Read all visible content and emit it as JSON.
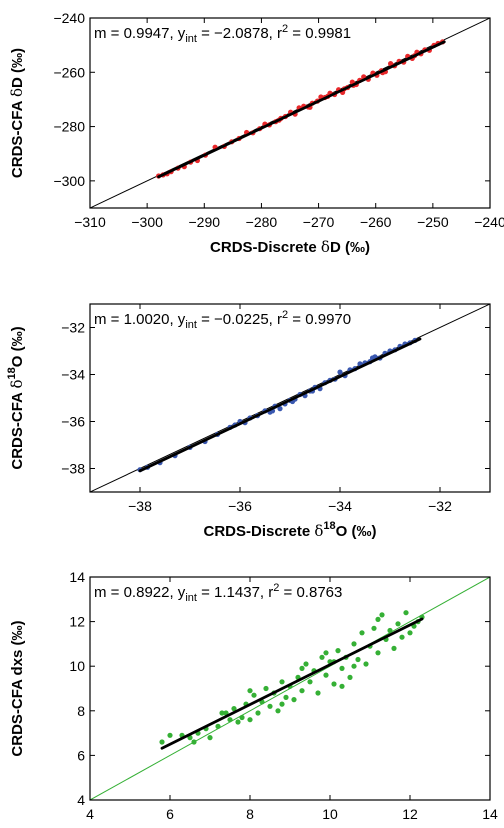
{
  "chart_data": [
    {
      "type": "scatter",
      "color": "#e8282b",
      "fit_line_color": "#000000",
      "xlim": [
        -310,
        -240
      ],
      "ylim": [
        -310,
        -240
      ],
      "xticks": [
        "−310",
        "−300",
        "−290",
        "−280",
        "−270",
        "−260",
        "−250",
        "−240"
      ],
      "yticks": [
        "−300",
        "−280",
        "−260",
        "−240"
      ],
      "xlabel": {
        "main": "CRDS-Discrete ",
        "greek": "δ",
        "sup": "",
        "rest": "D (‰)"
      },
      "ylabel": {
        "main": "CRDS-CFA ",
        "greek": "δ",
        "sup": "",
        "rest": "D (‰)"
      },
      "annotation": {
        "m": "m = 0.9947, y",
        "sub": "int",
        "mid": " = −2.0878, r",
        "sup": "2",
        "end": " = 0.9981"
      },
      "fit": {
        "slope": 0.9947,
        "intercept": -2.0878,
        "x_range": [
          -298,
          -248
        ]
      },
      "one_to_one": true,
      "points": [
        [
          -298,
          -298.2
        ],
        [
          -297.2,
          -297.8
        ],
        [
          -296.5,
          -297.4
        ],
        [
          -295.8,
          -296.6
        ],
        [
          -294.6,
          -295.3
        ],
        [
          -293.5,
          -294.8
        ],
        [
          -292.4,
          -293.1
        ],
        [
          -291.2,
          -292.5
        ],
        [
          -289.8,
          -290.5
        ],
        [
          -288.1,
          -287.6
        ],
        [
          -286.5,
          -287.3
        ],
        [
          -285.2,
          -285.6
        ],
        [
          -283.9,
          -284.4
        ],
        [
          -282.6,
          -282.2
        ],
        [
          -281.5,
          -282.3
        ],
        [
          -280.3,
          -280.8
        ],
        [
          -279.4,
          -279.1
        ],
        [
          -278.6,
          -279.4
        ],
        [
          -277.5,
          -278.2
        ],
        [
          -276.6,
          -277.0
        ],
        [
          -275.8,
          -276.3
        ],
        [
          -274.9,
          -274.7
        ],
        [
          -274.1,
          -275.4
        ],
        [
          -273.4,
          -273.1
        ],
        [
          -272.6,
          -272.5
        ],
        [
          -271.8,
          -272.8
        ],
        [
          -271.1,
          -271.4
        ],
        [
          -270.2,
          -270.6
        ],
        [
          -269.6,
          -269.1
        ],
        [
          -268.9,
          -269.3
        ],
        [
          -268.0,
          -267.7
        ],
        [
          -267.2,
          -268.2
        ],
        [
          -266.5,
          -266.4
        ],
        [
          -265.8,
          -267.4
        ],
        [
          -264.9,
          -265.6
        ],
        [
          -264.1,
          -263.6
        ],
        [
          -263.4,
          -264.5
        ],
        [
          -262.8,
          -263.0
        ],
        [
          -262.1,
          -261.7
        ],
        [
          -261.3,
          -262.6
        ],
        [
          -260.5,
          -260.3
        ],
        [
          -259.8,
          -261.1
        ],
        [
          -259.0,
          -259.4
        ],
        [
          -258.3,
          -259.8
        ],
        [
          -257.4,
          -256.8
        ],
        [
          -256.7,
          -257.6
        ],
        [
          -255.9,
          -256.0
        ],
        [
          -255.1,
          -256.3
        ],
        [
          -254.4,
          -254.1
        ],
        [
          -253.6,
          -254.9
        ],
        [
          -252.8,
          -252.6
        ],
        [
          -252.1,
          -253.2
        ],
        [
          -251.4,
          -251.7
        ],
        [
          -250.6,
          -251.9
        ],
        [
          -249.8,
          -250.1
        ],
        [
          -249.1,
          -249.4
        ],
        [
          -248.3,
          -248.8
        ],
        [
          -271.5,
          -272.9
        ],
        [
          -276.9,
          -277.6
        ],
        [
          -268.4,
          -268.9
        ],
        [
          -263.9,
          -264.8
        ],
        [
          -258.8,
          -260.1
        ],
        [
          -253.2,
          -253.9
        ],
        [
          -265.5,
          -266.1
        ]
      ]
    },
    {
      "type": "scatter",
      "color": "#3a58b0",
      "fit_line_color": "#000000",
      "xlim": [
        -39,
        -31
      ],
      "ylim": [
        -39,
        -31
      ],
      "xticks": [
        "−38",
        "−36",
        "−34",
        "−32"
      ],
      "yticks": [
        "−38",
        "−36",
        "−34",
        "−32"
      ],
      "xlabel": {
        "main": "CRDS-Discrete ",
        "greek": "δ",
        "sup": "18",
        "rest": "O (‰)"
      },
      "ylabel": {
        "main": "CRDS-CFA ",
        "greek": "δ",
        "sup": "18",
        "rest": "O (‰)"
      },
      "annotation": {
        "m": "m = 1.0020, y",
        "sub": "int",
        "mid": " = −0.0225, r",
        "sup": "2",
        "end": " = 0.9970"
      },
      "fit": {
        "slope": 1.002,
        "intercept": -0.0225,
        "x_range": [
          -38.0,
          -32.4
        ]
      },
      "one_to_one": true,
      "points": [
        [
          -38.0,
          -38.05
        ],
        [
          -37.85,
          -37.95
        ],
        [
          -37.6,
          -37.75
        ],
        [
          -37.3,
          -37.45
        ],
        [
          -37.0,
          -37.1
        ],
        [
          -36.7,
          -36.85
        ],
        [
          -36.45,
          -36.55
        ],
        [
          -36.2,
          -36.25
        ],
        [
          -36.0,
          -36.0
        ],
        [
          -35.9,
          -36.05
        ],
        [
          -35.8,
          -35.85
        ],
        [
          -35.65,
          -35.75
        ],
        [
          -35.5,
          -35.55
        ],
        [
          -35.4,
          -35.6
        ],
        [
          -35.3,
          -35.35
        ],
        [
          -35.2,
          -35.45
        ],
        [
          -35.1,
          -35.25
        ],
        [
          -35.0,
          -35.1
        ],
        [
          -34.9,
          -35.05
        ],
        [
          -34.8,
          -34.85
        ],
        [
          -34.7,
          -34.9
        ],
        [
          -34.6,
          -34.7
        ],
        [
          -34.5,
          -34.55
        ],
        [
          -34.4,
          -34.6
        ],
        [
          -34.3,
          -34.35
        ],
        [
          -34.2,
          -34.25
        ],
        [
          -34.1,
          -34.2
        ],
        [
          -34.0,
          -33.9
        ],
        [
          -33.9,
          -34.05
        ],
        [
          -33.8,
          -33.8
        ],
        [
          -33.7,
          -33.75
        ],
        [
          -33.6,
          -33.55
        ],
        [
          -33.5,
          -33.5
        ],
        [
          -33.4,
          -33.45
        ],
        [
          -33.3,
          -33.25
        ],
        [
          -33.2,
          -33.3
        ],
        [
          -33.1,
          -33.1
        ],
        [
          -33.0,
          -33.0
        ],
        [
          -32.9,
          -32.95
        ],
        [
          -32.8,
          -32.8
        ],
        [
          -32.7,
          -32.7
        ],
        [
          -32.6,
          -32.65
        ],
        [
          -32.5,
          -32.55
        ],
        [
          -35.35,
          -35.55
        ],
        [
          -34.95,
          -35.15
        ],
        [
          -34.55,
          -34.7
        ],
        [
          -36.1,
          -36.15
        ],
        [
          -33.35,
          -33.3
        ]
      ]
    },
    {
      "type": "scatter",
      "color": "#35b035",
      "fit_line_color": "#000000",
      "one_to_one_color": "#35b035",
      "xlim": [
        4,
        14
      ],
      "ylim": [
        4,
        14
      ],
      "xticks": [
        "4",
        "6",
        "8",
        "10",
        "12",
        "14"
      ],
      "yticks": [
        "4",
        "6",
        "8",
        "10",
        "12",
        "14"
      ],
      "xlabel": {
        "main": "CRDS-Discrete dxs (‰)",
        "greek": "",
        "sup": "",
        "rest": ""
      },
      "ylabel": {
        "main": "CRDS-CFA dxs (‰)",
        "greek": "",
        "sup": "",
        "rest": ""
      },
      "annotation": {
        "m": "m = 0.8922, y",
        "sub": "int",
        "mid": " = 1.1437, r",
        "sup": "2",
        "end": " = 0.8763"
      },
      "fit": {
        "slope": 0.8922,
        "intercept": 1.1437,
        "x_range": [
          5.8,
          12.3
        ]
      },
      "one_to_one": true,
      "points": [
        [
          5.8,
          6.6
        ],
        [
          6.3,
          6.9
        ],
        [
          6.5,
          6.8
        ],
        [
          6.7,
          7.0
        ],
        [
          6.9,
          7.2
        ],
        [
          7.0,
          6.8
        ],
        [
          7.2,
          7.3
        ],
        [
          7.4,
          7.9
        ],
        [
          7.5,
          7.6
        ],
        [
          7.6,
          8.1
        ],
        [
          7.7,
          7.5
        ],
        [
          7.8,
          7.7
        ],
        [
          7.9,
          8.3
        ],
        [
          8.0,
          7.6
        ],
        [
          8.1,
          8.7
        ],
        [
          8.2,
          7.9
        ],
        [
          8.3,
          8.4
        ],
        [
          8.4,
          9.0
        ],
        [
          8.5,
          8.2
        ],
        [
          8.6,
          8.8
        ],
        [
          8.7,
          8.0
        ],
        [
          8.8,
          9.3
        ],
        [
          8.9,
          8.6
        ],
        [
          9.0,
          9.1
        ],
        [
          9.1,
          8.5
        ],
        [
          9.2,
          9.5
        ],
        [
          9.3,
          8.9
        ],
        [
          9.4,
          10.1
        ],
        [
          9.5,
          9.3
        ],
        [
          9.6,
          9.8
        ],
        [
          9.7,
          8.8
        ],
        [
          9.8,
          10.4
        ],
        [
          9.9,
          9.6
        ],
        [
          10.0,
          10.2
        ],
        [
          10.1,
          9.2
        ],
        [
          10.2,
          10.7
        ],
        [
          10.3,
          9.9
        ],
        [
          10.4,
          10.4
        ],
        [
          10.5,
          9.5
        ],
        [
          10.6,
          11.0
        ],
        [
          10.7,
          10.3
        ],
        [
          10.8,
          11.5
        ],
        [
          10.9,
          10.1
        ],
        [
          11.0,
          10.9
        ],
        [
          11.1,
          11.7
        ],
        [
          11.2,
          10.6
        ],
        [
          11.3,
          12.3
        ],
        [
          11.4,
          11.2
        ],
        [
          11.5,
          11.6
        ],
        [
          11.6,
          10.8
        ],
        [
          11.7,
          11.9
        ],
        [
          11.8,
          11.3
        ],
        [
          11.9,
          12.4
        ],
        [
          12.0,
          11.5
        ],
        [
          12.1,
          11.8
        ],
        [
          12.2,
          12.0
        ],
        [
          12.3,
          12.2
        ],
        [
          10.3,
          9.1
        ],
        [
          9.3,
          9.9
        ],
        [
          8.0,
          8.9
        ],
        [
          7.3,
          7.9
        ],
        [
          6.0,
          6.9
        ],
        [
          6.6,
          6.6
        ],
        [
          10.6,
          10.0
        ],
        [
          11.2,
          12.1
        ],
        [
          9.9,
          10.6
        ],
        [
          8.8,
          8.3
        ],
        [
          10.1,
          10.2
        ]
      ]
    }
  ]
}
